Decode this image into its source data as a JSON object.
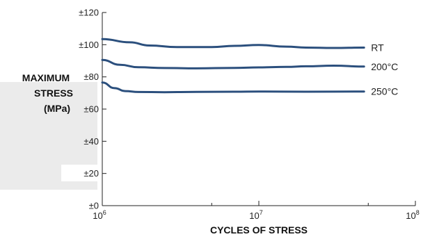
{
  "chart_data": {
    "type": "line",
    "xscale": "log",
    "xlabel": "CYCLES OF STRESS",
    "ylabel_lines": [
      "MAXIMUM",
      "STRESS",
      "(MPa)"
    ],
    "xlim": [
      1000000,
      100000000
    ],
    "ylim": [
      0,
      120
    ],
    "y_ticks": [
      {
        "value": 0,
        "label": "±0"
      },
      {
        "value": 20,
        "label": "±20"
      },
      {
        "value": 40,
        "label": "±40"
      },
      {
        "value": 60,
        "label": "±60"
      },
      {
        "value": 80,
        "label": "±80"
      },
      {
        "value": 100,
        "label": "±100"
      },
      {
        "value": 120,
        "label": "±120"
      }
    ],
    "x_ticks": [
      {
        "value": 1000000,
        "base": "10",
        "exp": "6"
      },
      {
        "value": 10000000,
        "base": "10",
        "exp": "7"
      },
      {
        "value": 100000000,
        "base": "10",
        "exp": "8"
      }
    ],
    "grid": false,
    "line_color": "#2b4f7d",
    "series": [
      {
        "name": "RT",
        "x": [
          1000000,
          1500000,
          2000000,
          3000000,
          5000000,
          7000000,
          10000000,
          15000000,
          20000000,
          30000000,
          47000000
        ],
        "y": [
          103.5,
          101.5,
          99.5,
          98.5,
          98.5,
          99.3,
          99.8,
          98.8,
          98.2,
          98,
          98.2
        ]
      },
      {
        "name": "200°C",
        "x": [
          1000000,
          1300000,
          1700000,
          2500000,
          4000000,
          7000000,
          10000000,
          15000000,
          20000000,
          30000000,
          47000000
        ],
        "y": [
          90.5,
          87.5,
          86,
          85.5,
          85.3,
          85.6,
          85.9,
          86.2,
          86.6,
          87,
          86.4
        ]
      },
      {
        "name": "250°C",
        "x": [
          1000000,
          1200000,
          1400000,
          1700000,
          2500000,
          4000000,
          7000000,
          10000000,
          20000000,
          47000000
        ],
        "y": [
          76.5,
          73,
          71.2,
          70.6,
          70.5,
          70.7,
          70.8,
          70.9,
          70.8,
          70.9
        ]
      }
    ]
  }
}
